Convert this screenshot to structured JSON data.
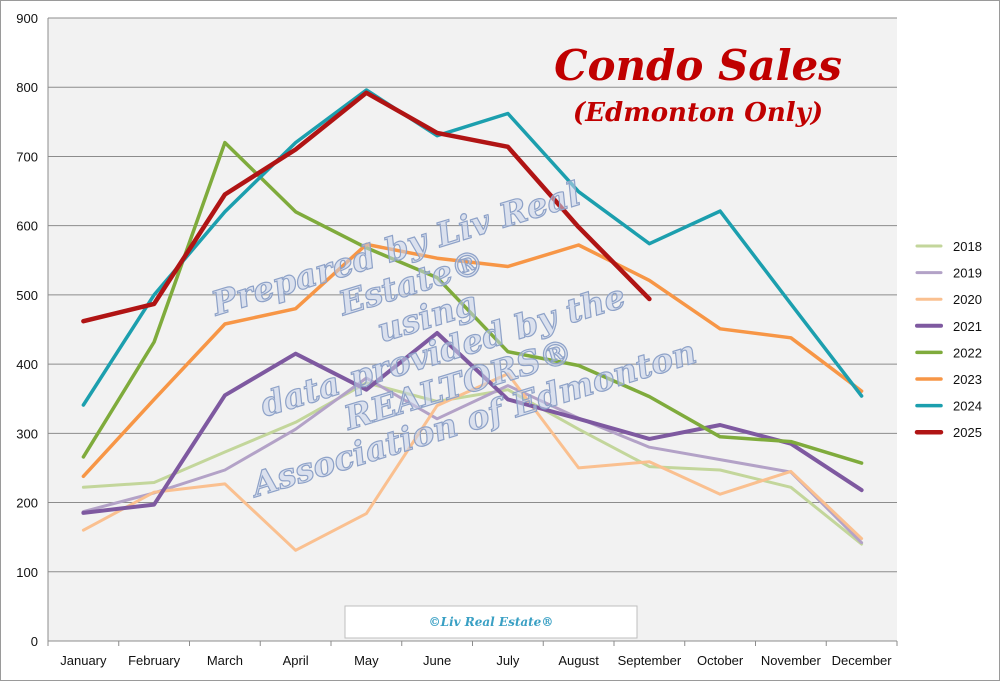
{
  "chart_data": {
    "type": "line",
    "title": "Condo Sales",
    "subtitle": "(Edmonton Only)",
    "xlabel": "",
    "ylabel": "",
    "ylim": [
      0,
      900
    ],
    "yticks": [
      0,
      100,
      200,
      300,
      400,
      500,
      600,
      700,
      800,
      900
    ],
    "grid": "horizontal",
    "legend_position": "right",
    "categories": [
      "January",
      "February",
      "March",
      "April",
      "May",
      "June",
      "July",
      "August",
      "September",
      "October",
      "November",
      "December"
    ],
    "series": [
      {
        "name": "2018",
        "color": "#c3d69b",
        "width": 3,
        "values": [
          222,
          229,
          273,
          316,
          373,
          346,
          363,
          306,
          252,
          247,
          222,
          140
        ]
      },
      {
        "name": "2019",
        "color": "#b3a2c7",
        "width": 3,
        "values": [
          187,
          214,
          247,
          306,
          380,
          321,
          369,
          322,
          280,
          262,
          244,
          142
        ]
      },
      {
        "name": "2020",
        "color": "#fac090",
        "width": 3,
        "values": [
          160,
          215,
          227,
          131,
          184,
          340,
          386,
          250,
          259,
          212,
          245,
          148
        ]
      },
      {
        "name": "2021",
        "color": "#7e59a0",
        "width": 4,
        "values": [
          185,
          197,
          355,
          415,
          363,
          445,
          349,
          321,
          292,
          312,
          285,
          218
        ]
      },
      {
        "name": "2022",
        "color": "#7fab3c",
        "width": 3.5,
        "values": [
          266,
          432,
          720,
          620,
          568,
          525,
          418,
          398,
          353,
          295,
          288,
          257
        ]
      },
      {
        "name": "2023",
        "color": "#f79646",
        "width": 3.5,
        "values": [
          238,
          349,
          458,
          480,
          573,
          553,
          541,
          572,
          521,
          451,
          438,
          361
        ]
      },
      {
        "name": "2024",
        "color": "#1c9fae",
        "width": 3.5,
        "values": [
          341,
          500,
          620,
          720,
          796,
          730,
          762,
          649,
          574,
          621,
          487,
          354
        ]
      },
      {
        "name": "2025",
        "color": "#b01414",
        "width": 4.5,
        "values": [
          462,
          487,
          645,
          710,
          792,
          734,
          714,
          598,
          494,
          null,
          null,
          null
        ]
      }
    ]
  },
  "watermark": {
    "lines": [
      "Prepared by Liv Real",
      "Estate®",
      "using",
      "data provided by the",
      "REALTORS®",
      "Association of Edmonton"
    ]
  },
  "copyright": "©Liv Real Estate®"
}
